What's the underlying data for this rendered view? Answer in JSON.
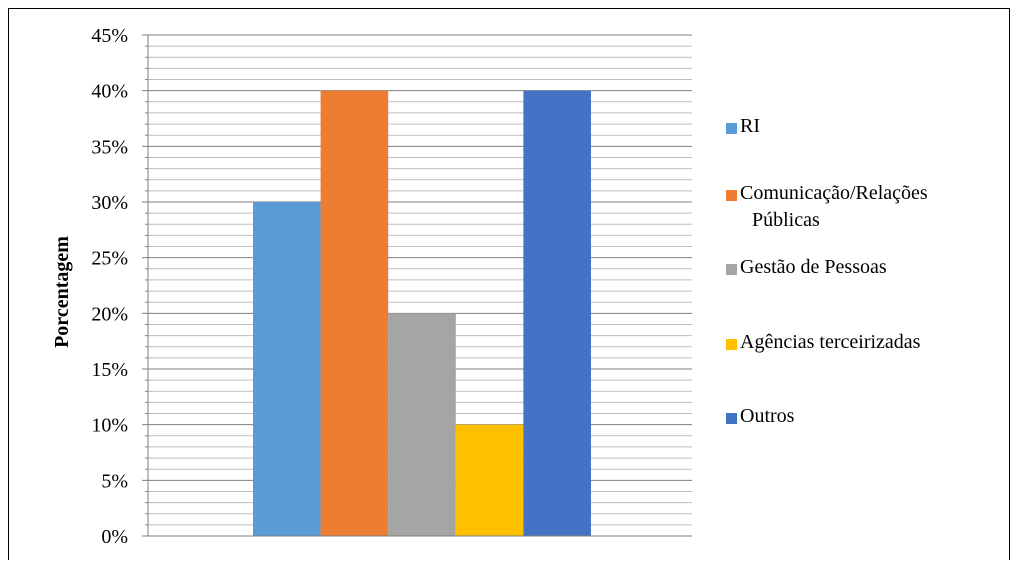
{
  "chart_data": {
    "type": "bar",
    "title": "",
    "xlabel": "",
    "ylabel": "Porcentagem",
    "ylim": [
      0,
      45
    ],
    "y_ticks": [
      "0%",
      "5%",
      "10%",
      "15%",
      "20%",
      "25%",
      "30%",
      "35%",
      "40%",
      "45%"
    ],
    "grid": true,
    "legend_position": "right",
    "series": [
      {
        "name": "RI",
        "value": 30,
        "color": "#5B9BD5"
      },
      {
        "name": "Comunicação/Relações Públicas",
        "value": 40,
        "color": "#ED7D31"
      },
      {
        "name": "Gestão de Pessoas",
        "value": 20,
        "color": "#A5A5A5"
      },
      {
        "name": "Agências terceirizadas",
        "value": 10,
        "color": "#FFC000"
      },
      {
        "name": "Outros",
        "value": 40,
        "color": "#4472C4"
      }
    ]
  }
}
